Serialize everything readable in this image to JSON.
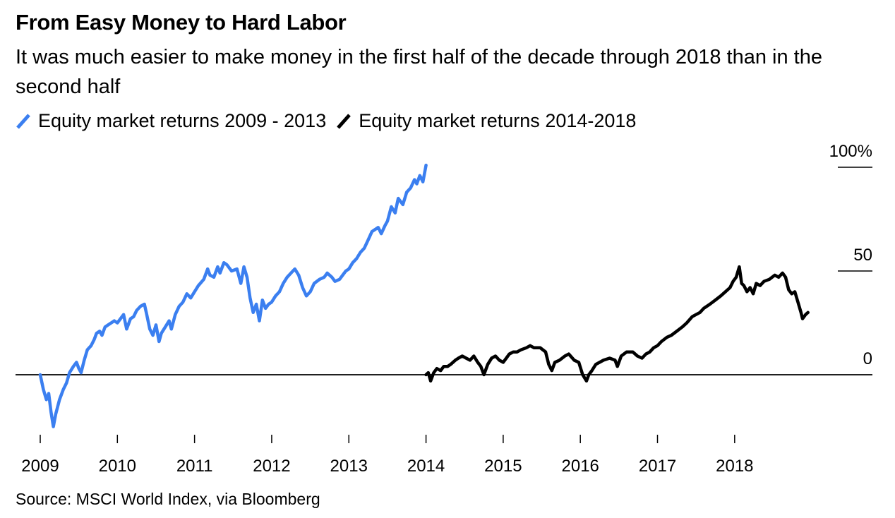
{
  "title": "From Easy Money to Hard Labor",
  "subtitle": "It was much easier to make money in the first half of the decade through 2018 than in the second half",
  "source": "Source: MSCI World Index, via Bloomberg",
  "colors": {
    "series1": "#3b7ff0",
    "series2": "#000000",
    "axis": "#000000"
  },
  "chart_data": {
    "type": "line",
    "title": "From Easy Money to Hard Labor",
    "xlabel": "",
    "ylabel": "",
    "xlim": [
      2009,
      2019.2
    ],
    "ylim": [
      -30,
      110
    ],
    "x_ticks": [
      2009,
      2010,
      2011,
      2012,
      2013,
      2014,
      2015,
      2016,
      2017,
      2018
    ],
    "x_tick_labels": [
      "2009",
      "2010",
      "2011",
      "2012",
      "2013",
      "2014",
      "2015",
      "2016",
      "2017",
      "2018"
    ],
    "y_ticks": [
      0,
      50,
      100
    ],
    "y_tick_labels": [
      "0",
      "50",
      "100%"
    ],
    "series": [
      {
        "name": "Equity market returns 2009 - 2013",
        "color": "#3b7ff0",
        "points": [
          [
            2009.0,
            0
          ],
          [
            2009.04,
            -7
          ],
          [
            2009.08,
            -12
          ],
          [
            2009.11,
            -9
          ],
          [
            2009.14,
            -18
          ],
          [
            2009.17,
            -25
          ],
          [
            2009.2,
            -19
          ],
          [
            2009.25,
            -12
          ],
          [
            2009.3,
            -7
          ],
          [
            2009.34,
            -4
          ],
          [
            2009.38,
            1
          ],
          [
            2009.43,
            4
          ],
          [
            2009.47,
            6
          ],
          [
            2009.5,
            3
          ],
          [
            2009.53,
            1
          ],
          [
            2009.57,
            7
          ],
          [
            2009.61,
            12
          ],
          [
            2009.66,
            14
          ],
          [
            2009.7,
            17
          ],
          [
            2009.73,
            20
          ],
          [
            2009.77,
            21
          ],
          [
            2009.8,
            19
          ],
          [
            2009.84,
            23
          ],
          [
            2009.88,
            24
          ],
          [
            2009.92,
            25
          ],
          [
            2009.96,
            26
          ],
          [
            2010.0,
            25
          ],
          [
            2010.04,
            27
          ],
          [
            2010.08,
            29
          ],
          [
            2010.12,
            22
          ],
          [
            2010.17,
            27
          ],
          [
            2010.21,
            28
          ],
          [
            2010.25,
            31
          ],
          [
            2010.3,
            33
          ],
          [
            2010.35,
            34
          ],
          [
            2010.38,
            29
          ],
          [
            2010.42,
            22
          ],
          [
            2010.46,
            19
          ],
          [
            2010.5,
            24
          ],
          [
            2010.54,
            16
          ],
          [
            2010.57,
            20
          ],
          [
            2010.62,
            23
          ],
          [
            2010.67,
            26
          ],
          [
            2010.7,
            22
          ],
          [
            2010.75,
            29
          ],
          [
            2010.8,
            33
          ],
          [
            2010.85,
            35
          ],
          [
            2010.9,
            39
          ],
          [
            2010.95,
            37
          ],
          [
            2011.0,
            40
          ],
          [
            2011.05,
            43
          ],
          [
            2011.12,
            46
          ],
          [
            2011.17,
            51
          ],
          [
            2011.2,
            48
          ],
          [
            2011.25,
            47
          ],
          [
            2011.3,
            52
          ],
          [
            2011.33,
            49
          ],
          [
            2011.38,
            54
          ],
          [
            2011.42,
            53
          ],
          [
            2011.48,
            50
          ],
          [
            2011.55,
            51
          ],
          [
            2011.6,
            44
          ],
          [
            2011.64,
            52
          ],
          [
            2011.68,
            47
          ],
          [
            2011.72,
            37
          ],
          [
            2011.76,
            30
          ],
          [
            2011.8,
            34
          ],
          [
            2011.84,
            26
          ],
          [
            2011.88,
            36
          ],
          [
            2011.92,
            32
          ],
          [
            2011.96,
            34
          ],
          [
            2012.0,
            35
          ],
          [
            2012.05,
            38
          ],
          [
            2012.1,
            40
          ],
          [
            2012.15,
            44
          ],
          [
            2012.2,
            47
          ],
          [
            2012.25,
            49
          ],
          [
            2012.3,
            51
          ],
          [
            2012.35,
            48
          ],
          [
            2012.4,
            42
          ],
          [
            2012.45,
            38
          ],
          [
            2012.5,
            40
          ],
          [
            2012.55,
            44
          ],
          [
            2012.62,
            46
          ],
          [
            2012.68,
            47
          ],
          [
            2012.72,
            49
          ],
          [
            2012.78,
            47
          ],
          [
            2012.82,
            45
          ],
          [
            2012.88,
            46
          ],
          [
            2012.92,
            48
          ],
          [
            2012.96,
            50
          ],
          [
            2013.0,
            51
          ],
          [
            2013.05,
            54
          ],
          [
            2013.1,
            56
          ],
          [
            2013.15,
            59
          ],
          [
            2013.2,
            61
          ],
          [
            2013.25,
            65
          ],
          [
            2013.3,
            69
          ],
          [
            2013.38,
            71
          ],
          [
            2013.42,
            68
          ],
          [
            2013.47,
            72
          ],
          [
            2013.5,
            74
          ],
          [
            2013.55,
            81
          ],
          [
            2013.6,
            78
          ],
          [
            2013.64,
            85
          ],
          [
            2013.7,
            82
          ],
          [
            2013.75,
            88
          ],
          [
            2013.8,
            90
          ],
          [
            2013.85,
            94
          ],
          [
            2013.88,
            92
          ],
          [
            2013.92,
            96
          ],
          [
            2013.96,
            93
          ],
          [
            2014.0,
            101
          ]
        ]
      },
      {
        "name": "Equity market returns 2014-2018",
        "color": "#000000",
        "points": [
          [
            2014.0,
            0
          ],
          [
            2014.03,
            1
          ],
          [
            2014.06,
            -3
          ],
          [
            2014.1,
            1
          ],
          [
            2014.14,
            3
          ],
          [
            2014.19,
            2
          ],
          [
            2014.23,
            4
          ],
          [
            2014.28,
            4
          ],
          [
            2014.32,
            5
          ],
          [
            2014.38,
            7
          ],
          [
            2014.42,
            8
          ],
          [
            2014.47,
            9
          ],
          [
            2014.52,
            8
          ],
          [
            2014.57,
            7
          ],
          [
            2014.62,
            9
          ],
          [
            2014.67,
            6
          ],
          [
            2014.71,
            4
          ],
          [
            2014.75,
            0
          ],
          [
            2014.8,
            5
          ],
          [
            2014.85,
            8
          ],
          [
            2014.9,
            9
          ],
          [
            2014.95,
            7
          ],
          [
            2015.0,
            6
          ],
          [
            2015.04,
            8
          ],
          [
            2015.08,
            10
          ],
          [
            2015.13,
            11
          ],
          [
            2015.18,
            11
          ],
          [
            2015.23,
            12
          ],
          [
            2015.3,
            13
          ],
          [
            2015.35,
            14
          ],
          [
            2015.4,
            13
          ],
          [
            2015.48,
            13
          ],
          [
            2015.55,
            11
          ],
          [
            2015.59,
            5
          ],
          [
            2015.63,
            2
          ],
          [
            2015.67,
            6
          ],
          [
            2015.73,
            7
          ],
          [
            2015.8,
            9
          ],
          [
            2015.85,
            10
          ],
          [
            2015.92,
            7
          ],
          [
            2015.98,
            6
          ],
          [
            2016.03,
            0
          ],
          [
            2016.08,
            -3
          ],
          [
            2016.11,
            0
          ],
          [
            2016.15,
            2
          ],
          [
            2016.2,
            5
          ],
          [
            2016.25,
            6
          ],
          [
            2016.3,
            7
          ],
          [
            2016.38,
            8
          ],
          [
            2016.45,
            7
          ],
          [
            2016.48,
            4
          ],
          [
            2016.53,
            9
          ],
          [
            2016.6,
            11
          ],
          [
            2016.68,
            11
          ],
          [
            2016.74,
            9
          ],
          [
            2016.8,
            8
          ],
          [
            2016.85,
            10
          ],
          [
            2016.9,
            11
          ],
          [
            2016.95,
            13
          ],
          [
            2017.0,
            14
          ],
          [
            2017.05,
            16
          ],
          [
            2017.12,
            18
          ],
          [
            2017.18,
            19
          ],
          [
            2017.25,
            21
          ],
          [
            2017.32,
            23
          ],
          [
            2017.38,
            25
          ],
          [
            2017.45,
            28
          ],
          [
            2017.5,
            29
          ],
          [
            2017.55,
            30
          ],
          [
            2017.6,
            32
          ],
          [
            2017.68,
            34
          ],
          [
            2017.75,
            36
          ],
          [
            2017.82,
            38
          ],
          [
            2017.88,
            40
          ],
          [
            2017.94,
            42
          ],
          [
            2017.98,
            45
          ],
          [
            2018.02,
            47
          ],
          [
            2018.06,
            52
          ],
          [
            2018.09,
            44
          ],
          [
            2018.12,
            43
          ],
          [
            2018.16,
            40
          ],
          [
            2018.2,
            42
          ],
          [
            2018.24,
            39
          ],
          [
            2018.28,
            44
          ],
          [
            2018.33,
            43
          ],
          [
            2018.38,
            45
          ],
          [
            2018.45,
            46
          ],
          [
            2018.52,
            48
          ],
          [
            2018.57,
            47
          ],
          [
            2018.62,
            49
          ],
          [
            2018.66,
            47
          ],
          [
            2018.7,
            41
          ],
          [
            2018.74,
            39
          ],
          [
            2018.78,
            40
          ],
          [
            2018.82,
            35
          ],
          [
            2018.86,
            30
          ],
          [
            2018.88,
            27
          ],
          [
            2018.92,
            29
          ],
          [
            2018.95,
            30
          ]
        ]
      }
    ]
  }
}
